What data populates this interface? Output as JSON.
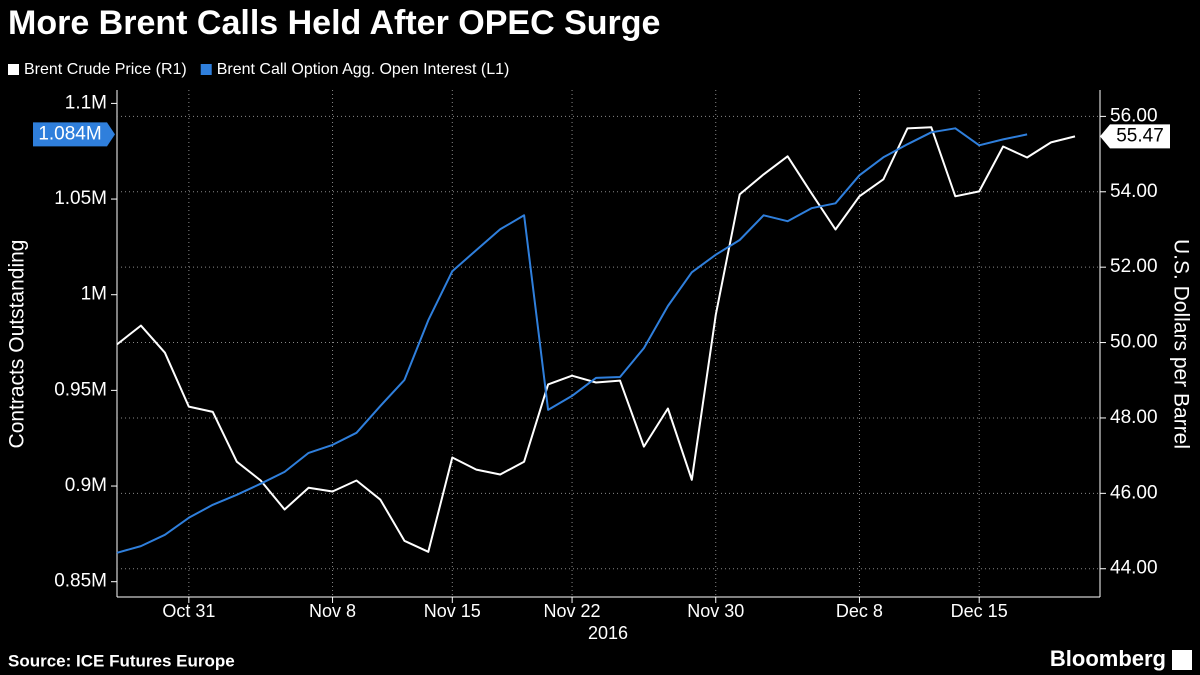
{
  "chart_data": {
    "type": "line",
    "title": "More Brent Calls Held After OPEC Surge",
    "source": "Source: ICE Futures Europe",
    "brand": "Bloomberg",
    "x_axis_label": "2016",
    "y_axis_label": "Contracts Outstanding",
    "y2_axis_label": "U.S. Dollars per Barrel",
    "legend": "top-left",
    "grid": true,
    "categories": [
      null,
      null,
      null,
      "Oct 31",
      null,
      null,
      null,
      null,
      null,
      "Nov 8",
      null,
      null,
      null,
      null,
      "Nov 15",
      null,
      null,
      null,
      null,
      "Nov 22",
      null,
      null,
      null,
      null,
      null,
      "Nov 30",
      null,
      null,
      null,
      null,
      null,
      "Dec 8",
      null,
      null,
      null,
      null,
      "Dec 15",
      null,
      null,
      null,
      null
    ],
    "ylim": [
      842000,
      1107000
    ],
    "yticks": [
      {
        "value": 850000,
        "label": "0.85M"
      },
      {
        "value": 900000,
        "label": "0.9M"
      },
      {
        "value": 950000,
        "label": "0.95M"
      },
      {
        "value": 1000000,
        "label": "1M"
      },
      {
        "value": 1050000,
        "label": "1.05M"
      },
      {
        "value": 1100000,
        "label": "1.1M"
      }
    ],
    "y2lim": [
      43.25,
      56.7
    ],
    "y2ticks": [
      {
        "value": 44,
        "label": "44.00"
      },
      {
        "value": 46,
        "label": "46.00"
      },
      {
        "value": 48,
        "label": "48.00"
      },
      {
        "value": 50,
        "label": "50.00"
      },
      {
        "value": 52,
        "label": "52.00"
      },
      {
        "value": 54,
        "label": "54.00"
      },
      {
        "value": 56,
        "label": "56.00"
      }
    ],
    "series": [
      {
        "name": "Brent Crude Price (R1)",
        "color": "#ffffff",
        "axis": "y2",
        "values": [
          49.95,
          50.45,
          49.73,
          48.3,
          48.16,
          46.84,
          46.34,
          45.57,
          46.15,
          46.05,
          46.34,
          45.83,
          44.74,
          44.45,
          46.95,
          46.63,
          46.5,
          46.84,
          48.89,
          49.12,
          48.94,
          48.99,
          47.24,
          48.25,
          46.36,
          50.74,
          53.93,
          54.46,
          54.94,
          53.96,
          53.0,
          53.88,
          54.33,
          55.68,
          55.71,
          53.88,
          54.01,
          55.2,
          54.91,
          55.31,
          55.47
        ]
      },
      {
        "name": "Brent Call Option Agg. Open Interest (L1)",
        "color": "#2f7fdc",
        "axis": "y",
        "values": [
          865100,
          868600,
          874500,
          883400,
          890200,
          895400,
          901200,
          907400,
          917300,
          921500,
          927800,
          941900,
          955400,
          986700,
          1012300,
          1023300,
          1034200,
          1041500,
          939800,
          947100,
          956500,
          957000,
          972100,
          994100,
          1011700,
          1020900,
          1028600,
          1041500,
          1038400,
          1045200,
          1047800,
          1062400,
          1071800,
          1078600,
          1084900,
          1087000,
          1078100,
          1081200,
          1083800,
          null,
          null
        ],
        "value_labels": [
          null,
          null,
          null,
          null,
          null,
          null,
          null,
          null,
          null,
          null,
          null,
          null,
          null,
          null,
          null,
          null,
          null,
          null,
          null,
          null,
          null,
          null,
          null,
          null,
          null,
          null,
          null,
          null,
          null,
          null,
          null,
          null,
          null,
          null,
          null,
          null,
          null,
          null,
          "1.084M",
          null,
          null
        ]
      }
    ]
  }
}
